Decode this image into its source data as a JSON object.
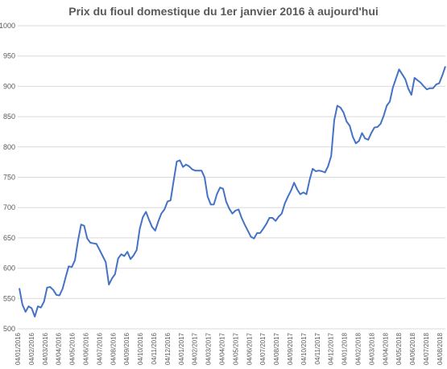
{
  "chart_data": {
    "type": "line",
    "title": "Prix du fioul domestique du 1er janvier 2016 à aujourd'hui",
    "xlabel": "",
    "ylabel": "",
    "ylim": [
      500,
      1000
    ],
    "yticks": [
      500,
      550,
      600,
      650,
      700,
      750,
      800,
      850,
      900,
      950,
      1000
    ],
    "grid": true,
    "legend": "none",
    "line_color": "#4472c4",
    "x_tick_labels": [
      "04/01/2016",
      "04/02/2016",
      "04/03/2016",
      "04/04/2016",
      "04/05/2016",
      "04/06/2016",
      "04/07/2016",
      "04/08/2016",
      "04/09/2016",
      "04/10/2016",
      "04/11/2016",
      "04/12/2016",
      "04/01/2017",
      "04/02/2017",
      "04/03/2017",
      "04/04/2017",
      "04/05/2017",
      "04/06/2017",
      "04/07/2017",
      "04/08/2017",
      "04/09/2017",
      "04/10/2017",
      "04/11/2017",
      "04/12/2017",
      "04/01/2018",
      "04/02/2018",
      "04/03/2018",
      "04/04/2018",
      "04/05/2018",
      "04/06/2018",
      "04/07/2018",
      "04/08/2018"
    ],
    "series": [
      {
        "values": [
          567,
          540,
          528,
          537,
          534,
          520,
          537,
          535,
          545,
          568,
          569,
          564,
          556,
          555,
          566,
          585,
          603,
          602,
          613,
          645,
          672,
          670,
          649,
          642,
          641,
          640,
          630,
          620,
          610,
          573,
          583,
          590,
          616,
          623,
          620,
          627,
          615,
          621,
          630,
          665,
          684,
          693,
          680,
          668,
          662,
          677,
          690,
          697,
          710,
          712,
          745,
          776,
          778,
          767,
          771,
          768,
          763,
          761,
          761,
          761,
          750,
          718,
          705,
          705,
          722,
          733,
          731,
          710,
          698,
          690,
          695,
          697,
          683,
          672,
          662,
          652,
          649,
          658,
          658,
          665,
          673,
          683,
          683,
          678,
          685,
          690,
          707,
          718,
          728,
          741,
          730,
          722,
          725,
          722,
          745,
          764,
          760,
          761,
          760,
          758,
          768,
          785,
          844,
          868,
          865,
          857,
          842,
          835,
          817,
          806,
          810,
          823,
          814,
          812,
          823,
          832,
          833,
          838,
          851,
          868,
          875,
          898,
          913,
          928,
          920,
          912,
          896,
          886,
          914,
          910,
          906,
          900,
          895,
          897,
          897,
          903,
          905,
          918,
          933
        ]
      }
    ]
  }
}
